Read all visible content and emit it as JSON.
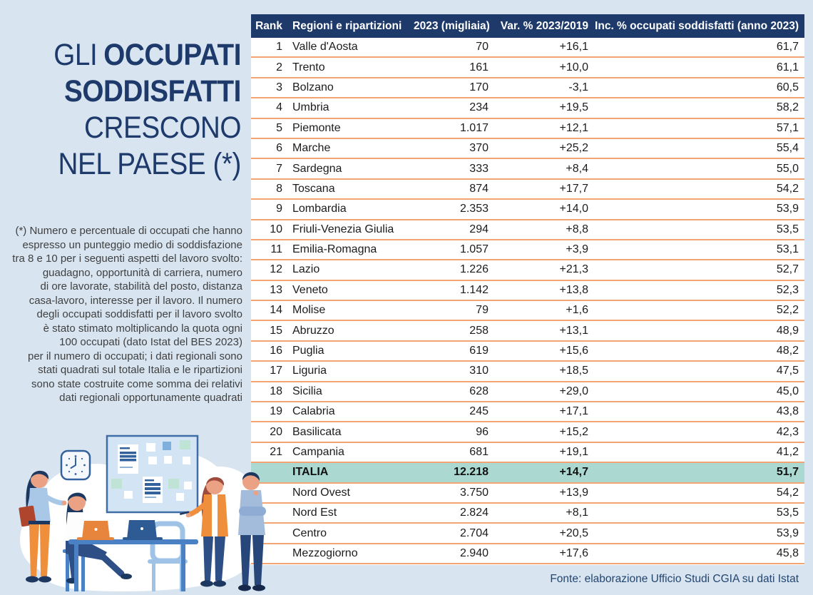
{
  "page": {
    "background_color": "#d8e5f1",
    "accent_navy": "#1e3a6b",
    "accent_orange": "#f2a472",
    "accent_teal": "#abd9d1"
  },
  "title": {
    "word_normal": "GLI",
    "word_bold": "OCCUPATI",
    "line2": "SODDISFATTI",
    "line3": "CRESCONO",
    "line4": "NEL PAESE (*)"
  },
  "footnote_lines": [
    "(*) Numero e percentuale di occupati che hanno",
    "espresso un punteggio medio di soddisfazione",
    "tra 8 e 10 per i seguenti aspetti del lavoro svolto:",
    "guadagno, opportunità di carriera, numero",
    "di ore lavorate, stabilità del posto, distanza",
    "casa-lavoro, interesse per il lavoro. Il numero",
    "degli occupati soddisfatti per il lavoro svolto",
    "è stato stimato moltiplicando la quota ogni",
    "100 occupati (dato Istat del BES 2023)",
    "per il numero di occupati; i dati regionali sono",
    "stati quadrati sul totale Italia e le ripartizioni",
    "sono state costruite come somma dei relativi",
    "dati regionali opportunamente quadrati"
  ],
  "chart_data": {
    "type": "table",
    "title": "Gli occupati soddisfatti crescono nel Paese (*)",
    "columns": [
      "Rank",
      "Regioni e ripartizioni",
      "2023 (migliaia)",
      "Var. % 2023/2019",
      "Inc. % occupati soddisfatti (anno 2023)"
    ],
    "highlight_row_index": 21,
    "rows": [
      [
        "1",
        "Valle d'Aosta",
        "70",
        "+16,1",
        "61,7"
      ],
      [
        "2",
        "Trento",
        "161",
        "+10,0",
        "61,1"
      ],
      [
        "3",
        "Bolzano",
        "170",
        "-3,1",
        "60,5"
      ],
      [
        "4",
        "Umbria",
        "234",
        "+19,5",
        "58,2"
      ],
      [
        "5",
        "Piemonte",
        "1.017",
        "+12,1",
        "57,1"
      ],
      [
        "6",
        "Marche",
        "370",
        "+25,2",
        "55,4"
      ],
      [
        "7",
        "Sardegna",
        "333",
        "+8,4",
        "55,0"
      ],
      [
        "8",
        "Toscana",
        "874",
        "+17,7",
        "54,2"
      ],
      [
        "9",
        "Lombardia",
        "2.353",
        "+14,0",
        "53,9"
      ],
      [
        "10",
        "Friuli-Venezia Giulia",
        "294",
        "+8,8",
        "53,5"
      ],
      [
        "11",
        "Emilia-Romagna",
        "1.057",
        "+3,9",
        "53,1"
      ],
      [
        "12",
        "Lazio",
        "1.226",
        "+21,3",
        "52,7"
      ],
      [
        "13",
        "Veneto",
        "1.142",
        "+13,8",
        "52,3"
      ],
      [
        "14",
        "Molise",
        "79",
        "+1,6",
        "52,2"
      ],
      [
        "15",
        "Abruzzo",
        "258",
        "+13,1",
        "48,9"
      ],
      [
        "16",
        "Puglia",
        "619",
        "+15,6",
        "48,2"
      ],
      [
        "17",
        "Liguria",
        "310",
        "+18,5",
        "47,5"
      ],
      [
        "18",
        "Sicilia",
        "628",
        "+29,0",
        "45,0"
      ],
      [
        "19",
        "Calabria",
        "245",
        "+17,1",
        "43,8"
      ],
      [
        "20",
        "Basilicata",
        "96",
        "+15,2",
        "42,3"
      ],
      [
        "21",
        "Campania",
        "681",
        "+19,1",
        "41,2"
      ],
      [
        "",
        "ITALIA",
        "12.218",
        "+14,7",
        "51,7"
      ],
      [
        "",
        "Nord Ovest",
        "3.750",
        "+13,9",
        "54,2"
      ],
      [
        "",
        "Nord Est",
        "2.824",
        "+8,1",
        "53,5"
      ],
      [
        "",
        "Centro",
        "2.704",
        "+20,5",
        "53,9"
      ],
      [
        "",
        "Mezzogiorno",
        "2.940",
        "+17,6",
        "45,8"
      ]
    ]
  },
  "source": "Fonte: elaborazione Ufficio Studi CGIA su dati Istat"
}
